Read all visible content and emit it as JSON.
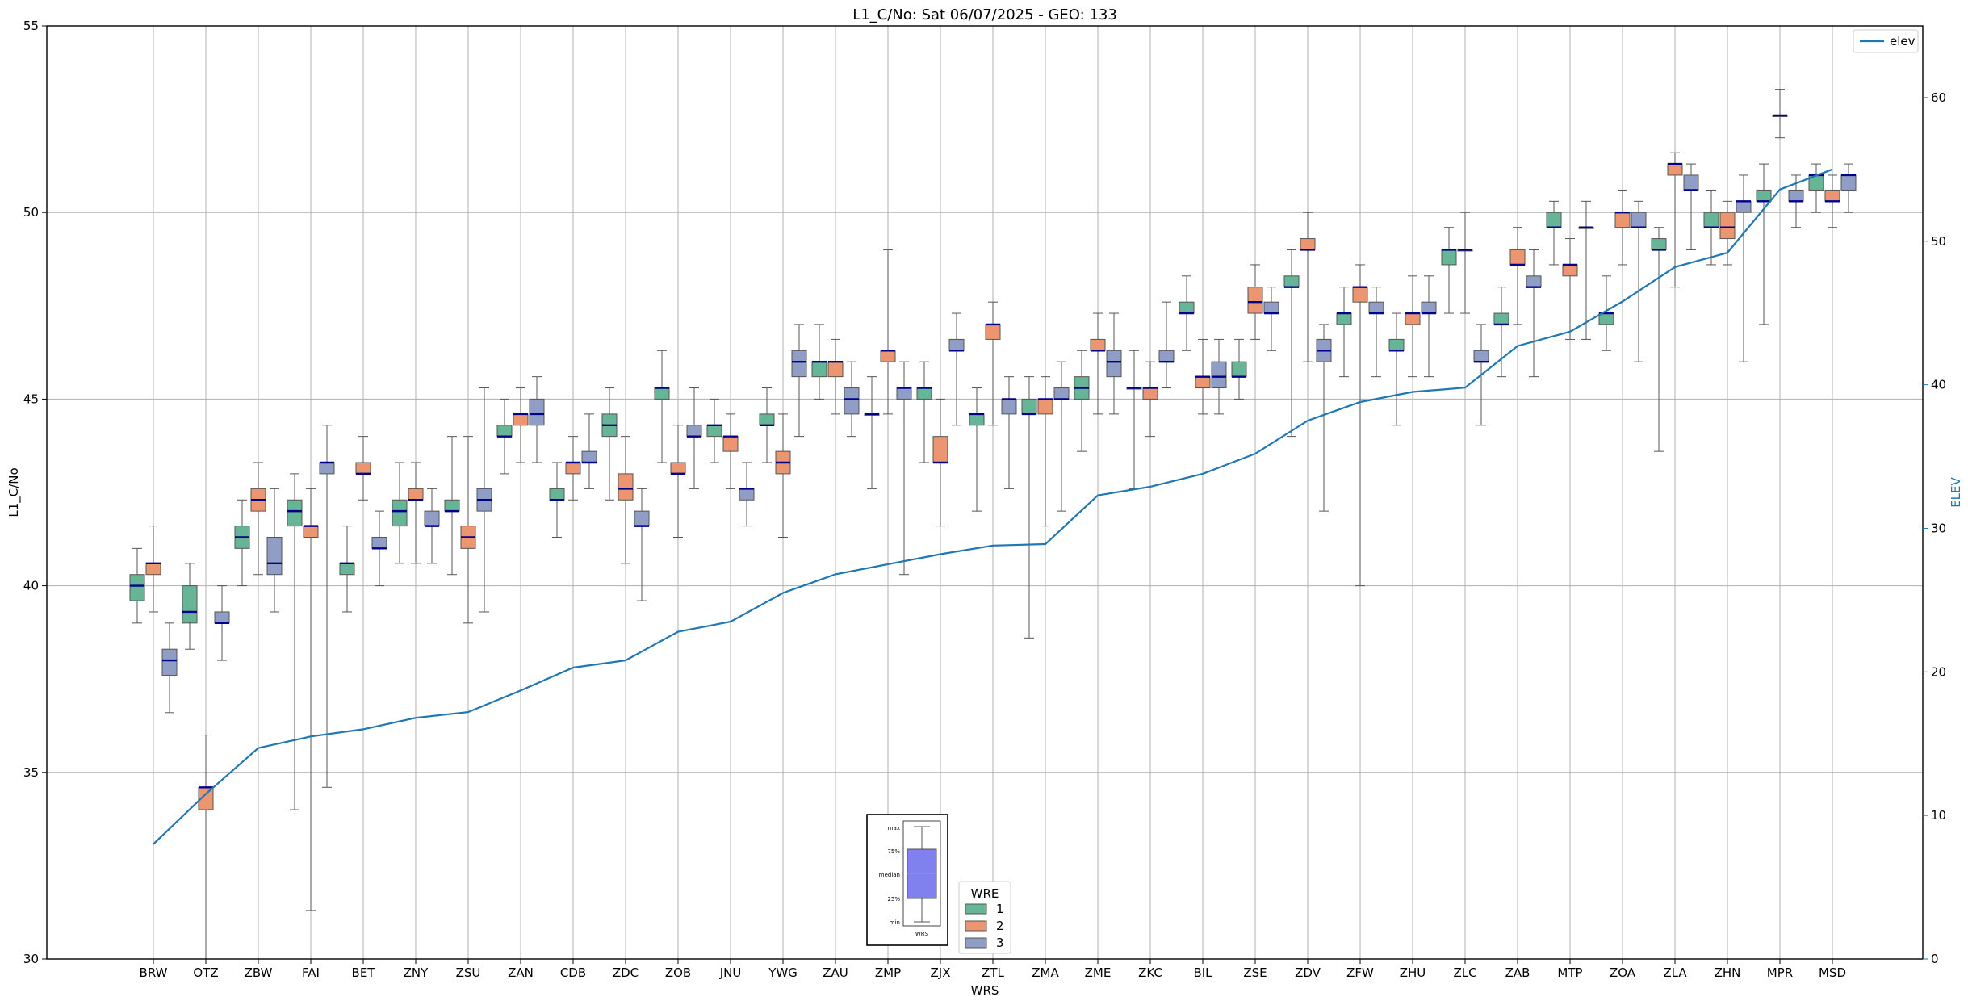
{
  "chart_data": {
    "type": "box",
    "title": "L1_C/No: Sat 06/07/2025 - GEO: 133",
    "xlabel": "WRS",
    "ylabel": "L1_C/No",
    "y2label": "ELEV",
    "ylim": [
      30,
      55
    ],
    "y2lim": [
      0,
      65
    ],
    "yticks": [
      "30",
      "35",
      "40",
      "45",
      "50",
      "55"
    ],
    "y2ticks": [
      "0",
      "10",
      "20",
      "30",
      "40",
      "50",
      "60"
    ],
    "legend_line": "elev",
    "legend_boxes": {
      "title": "WRE",
      "entries": [
        "1",
        "2",
        "3"
      ]
    },
    "key_labels": [
      "max",
      "75%",
      "median",
      "25%",
      "min",
      "WRS"
    ],
    "colors": {
      "1": "#66b596",
      "2": "#ec9671",
      "3": "#909dc4",
      "line": "#1f77b4",
      "median": "#00008b"
    },
    "categories": [
      "BRW",
      "OTZ",
      "ZBW",
      "FAI",
      "BET",
      "ZNY",
      "ZSU",
      "ZAN",
      "CDB",
      "ZDC",
      "ZOB",
      "JNU",
      "YWG",
      "ZAU",
      "ZMP",
      "ZJX",
      "ZTL",
      "ZMA",
      "ZME",
      "ZKC",
      "BIL",
      "ZSE",
      "ZDV",
      "ZFW",
      "ZHU",
      "ZLC",
      "ZAB",
      "MTP",
      "ZOA",
      "ZLA",
      "ZHN",
      "MPR",
      "MSD"
    ],
    "elev": [
      8,
      11.5,
      14.7,
      15.5,
      16,
      16.8,
      17.2,
      18.7,
      20.3,
      20.8,
      22.8,
      23.5,
      25.5,
      26.8,
      27.5,
      28.2,
      28.8,
      28.9,
      32.3,
      32.9,
      33.8,
      35.2,
      37.5,
      38.8,
      39.5,
      39.8,
      42.7,
      43.7,
      45.8,
      48.2,
      49.2,
      53.6,
      55
    ],
    "boxes": [
      {
        "station": "BRW",
        "wre": 1,
        "min": 39.0,
        "q1": 39.6,
        "median": 40.0,
        "q3": 40.3,
        "max": 41.0
      },
      {
        "station": "BRW",
        "wre": 2,
        "min": 39.3,
        "q1": 40.3,
        "median": 40.6,
        "q3": 40.6,
        "max": 41.6
      },
      {
        "station": "BRW",
        "wre": 3,
        "min": 36.6,
        "q1": 37.6,
        "median": 38.0,
        "q3": 38.3,
        "max": 39.0
      },
      {
        "station": "OTZ",
        "wre": 1,
        "min": 38.3,
        "q1": 39.0,
        "median": 39.3,
        "q3": 40.0,
        "max": 40.6
      },
      {
        "station": "OTZ",
        "wre": 2,
        "min": 30.0,
        "q1": 34.0,
        "median": 34.6,
        "q3": 34.6,
        "max": 36.0
      },
      {
        "station": "OTZ",
        "wre": 3,
        "min": 38.0,
        "q1": 39.0,
        "median": 39.0,
        "q3": 39.3,
        "max": 40.0
      },
      {
        "station": "ZBW",
        "wre": 1,
        "min": 40.0,
        "q1": 41.0,
        "median": 41.3,
        "q3": 41.6,
        "max": 42.3
      },
      {
        "station": "ZBW",
        "wre": 2,
        "min": 40.3,
        "q1": 42.0,
        "median": 42.3,
        "q3": 42.6,
        "max": 43.3
      },
      {
        "station": "ZBW",
        "wre": 3,
        "min": 39.3,
        "q1": 40.3,
        "median": 40.6,
        "q3": 41.3,
        "max": 42.6
      },
      {
        "station": "FAI",
        "wre": 1,
        "min": 34.0,
        "q1": 41.6,
        "median": 42.0,
        "q3": 42.3,
        "max": 43.0
      },
      {
        "station": "FAI",
        "wre": 2,
        "min": 31.3,
        "q1": 41.3,
        "median": 41.6,
        "q3": 41.6,
        "max": 42.6
      },
      {
        "station": "FAI",
        "wre": 3,
        "min": 34.6,
        "q1": 43.0,
        "median": 43.3,
        "q3": 43.3,
        "max": 44.3
      },
      {
        "station": "BET",
        "wre": 1,
        "min": 39.3,
        "q1": 40.3,
        "median": 40.6,
        "q3": 40.6,
        "max": 41.6
      },
      {
        "station": "BET",
        "wre": 2,
        "min": 42.3,
        "q1": 43.0,
        "median": 43.0,
        "q3": 43.3,
        "max": 44.0
      },
      {
        "station": "BET",
        "wre": 3,
        "min": 40.0,
        "q1": 41.0,
        "median": 41.0,
        "q3": 41.3,
        "max": 42.0
      },
      {
        "station": "ZNY",
        "wre": 1,
        "min": 40.6,
        "q1": 41.6,
        "median": 42.0,
        "q3": 42.3,
        "max": 43.3
      },
      {
        "station": "ZNY",
        "wre": 2,
        "min": 40.6,
        "q1": 42.3,
        "median": 42.3,
        "q3": 42.6,
        "max": 43.3
      },
      {
        "station": "ZNY",
        "wre": 3,
        "min": 40.6,
        "q1": 41.6,
        "median": 41.6,
        "q3": 42.0,
        "max": 42.6
      },
      {
        "station": "ZSU",
        "wre": 1,
        "min": 40.3,
        "q1": 42.0,
        "median": 42.0,
        "q3": 42.3,
        "max": 44.0
      },
      {
        "station": "ZSU",
        "wre": 2,
        "min": 39.0,
        "q1": 41.0,
        "median": 41.3,
        "q3": 41.6,
        "max": 44.0
      },
      {
        "station": "ZSU",
        "wre": 3,
        "min": 39.3,
        "q1": 42.0,
        "median": 42.3,
        "q3": 42.6,
        "max": 45.3
      },
      {
        "station": "ZAN",
        "wre": 1,
        "min": 43.0,
        "q1": 44.0,
        "median": 44.0,
        "q3": 44.3,
        "max": 45.0
      },
      {
        "station": "ZAN",
        "wre": 2,
        "min": 43.3,
        "q1": 44.3,
        "median": 44.6,
        "q3": 44.6,
        "max": 45.3
      },
      {
        "station": "ZAN",
        "wre": 3,
        "min": 43.3,
        "q1": 44.3,
        "median": 44.6,
        "q3": 45.0,
        "max": 45.6
      },
      {
        "station": "CDB",
        "wre": 1,
        "min": 41.3,
        "q1": 42.3,
        "median": 42.3,
        "q3": 42.6,
        "max": 43.3
      },
      {
        "station": "CDB",
        "wre": 2,
        "min": 42.3,
        "q1": 43.0,
        "median": 43.3,
        "q3": 43.3,
        "max": 44.0
      },
      {
        "station": "CDB",
        "wre": 3,
        "min": 42.6,
        "q1": 43.3,
        "median": 43.3,
        "q3": 43.6,
        "max": 44.6
      },
      {
        "station": "ZDC",
        "wre": 1,
        "min": 42.3,
        "q1": 44.0,
        "median": 44.3,
        "q3": 44.6,
        "max": 45.3
      },
      {
        "station": "ZDC",
        "wre": 2,
        "min": 40.6,
        "q1": 42.3,
        "median": 42.6,
        "q3": 43.0,
        "max": 44.0
      },
      {
        "station": "ZDC",
        "wre": 3,
        "min": 39.6,
        "q1": 41.6,
        "median": 41.6,
        "q3": 42.0,
        "max": 42.6
      },
      {
        "station": "ZOB",
        "wre": 1,
        "min": 43.3,
        "q1": 45.0,
        "median": 45.3,
        "q3": 45.3,
        "max": 46.3
      },
      {
        "station": "ZOB",
        "wre": 2,
        "min": 41.3,
        "q1": 43.0,
        "median": 43.0,
        "q3": 43.3,
        "max": 44.3
      },
      {
        "station": "ZOB",
        "wre": 3,
        "min": 42.6,
        "q1": 44.0,
        "median": 44.0,
        "q3": 44.3,
        "max": 45.3
      },
      {
        "station": "JNU",
        "wre": 1,
        "min": 43.3,
        "q1": 44.0,
        "median": 44.3,
        "q3": 44.3,
        "max": 45.0
      },
      {
        "station": "JNU",
        "wre": 2,
        "min": 42.6,
        "q1": 43.6,
        "median": 44.0,
        "q3": 44.0,
        "max": 44.6
      },
      {
        "station": "JNU",
        "wre": 3,
        "min": 41.6,
        "q1": 42.3,
        "median": 42.6,
        "q3": 42.6,
        "max": 43.3
      },
      {
        "station": "YWG",
        "wre": 1,
        "min": 43.3,
        "q1": 44.3,
        "median": 44.3,
        "q3": 44.6,
        "max": 45.3
      },
      {
        "station": "YWG",
        "wre": 2,
        "min": 41.3,
        "q1": 43.0,
        "median": 43.3,
        "q3": 43.6,
        "max": 44.6
      },
      {
        "station": "YWG",
        "wre": 3,
        "min": 44.0,
        "q1": 45.6,
        "median": 46.0,
        "q3": 46.3,
        "max": 47.0
      },
      {
        "station": "ZAU",
        "wre": 1,
        "min": 45.0,
        "q1": 45.6,
        "median": 46.0,
        "q3": 46.0,
        "max": 47.0
      },
      {
        "station": "ZAU",
        "wre": 2,
        "min": 44.6,
        "q1": 45.6,
        "median": 46.0,
        "q3": 46.0,
        "max": 46.6
      },
      {
        "station": "ZAU",
        "wre": 3,
        "min": 44.0,
        "q1": 44.6,
        "median": 45.0,
        "q3": 45.3,
        "max": 46.0
      },
      {
        "station": "ZMP",
        "wre": 1,
        "min": 42.6,
        "q1": 44.6,
        "median": 44.6,
        "q3": 44.6,
        "max": 45.6
      },
      {
        "station": "ZMP",
        "wre": 2,
        "min": 44.6,
        "q1": 46.0,
        "median": 46.3,
        "q3": 46.3,
        "max": 49.0
      },
      {
        "station": "ZMP",
        "wre": 3,
        "min": 40.3,
        "q1": 45.0,
        "median": 45.3,
        "q3": 45.3,
        "max": 46.0
      },
      {
        "station": "ZJX",
        "wre": 1,
        "min": 43.3,
        "q1": 45.0,
        "median": 45.3,
        "q3": 45.3,
        "max": 46.0
      },
      {
        "station": "ZJX",
        "wre": 2,
        "min": 41.6,
        "q1": 43.3,
        "median": 43.3,
        "q3": 44.0,
        "max": 45.0
      },
      {
        "station": "ZJX",
        "wre": 3,
        "min": 44.3,
        "q1": 46.3,
        "median": 46.3,
        "q3": 46.6,
        "max": 47.3
      },
      {
        "station": "ZTL",
        "wre": 1,
        "min": 42.0,
        "q1": 44.3,
        "median": 44.6,
        "q3": 44.6,
        "max": 45.3
      },
      {
        "station": "ZTL",
        "wre": 2,
        "min": 44.3,
        "q1": 46.6,
        "median": 47.0,
        "q3": 47.0,
        "max": 47.6
      },
      {
        "station": "ZTL",
        "wre": 3,
        "min": 42.6,
        "q1": 44.6,
        "median": 45.0,
        "q3": 45.0,
        "max": 45.6
      },
      {
        "station": "ZMA",
        "wre": 1,
        "min": 38.6,
        "q1": 44.6,
        "median": 44.6,
        "q3": 45.0,
        "max": 45.6
      },
      {
        "station": "ZMA",
        "wre": 2,
        "min": 41.6,
        "q1": 44.6,
        "median": 45.0,
        "q3": 45.0,
        "max": 45.6
      },
      {
        "station": "ZMA",
        "wre": 3,
        "min": 42.0,
        "q1": 45.0,
        "median": 45.0,
        "q3": 45.3,
        "max": 46.0
      },
      {
        "station": "ZME",
        "wre": 1,
        "min": 43.6,
        "q1": 45.0,
        "median": 45.3,
        "q3": 45.6,
        "max": 46.3
      },
      {
        "station": "ZME",
        "wre": 2,
        "min": 44.6,
        "q1": 46.3,
        "median": 46.3,
        "q3": 46.6,
        "max": 47.3
      },
      {
        "station": "ZME",
        "wre": 3,
        "min": 44.6,
        "q1": 45.6,
        "median": 46.0,
        "q3": 46.3,
        "max": 47.3
      },
      {
        "station": "ZKC",
        "wre": 1,
        "min": 42.6,
        "q1": 45.3,
        "median": 45.3,
        "q3": 45.3,
        "max": 46.3
      },
      {
        "station": "ZKC",
        "wre": 2,
        "min": 44.0,
        "q1": 45.0,
        "median": 45.3,
        "q3": 45.3,
        "max": 46.0
      },
      {
        "station": "ZKC",
        "wre": 3,
        "min": 45.3,
        "q1": 46.0,
        "median": 46.0,
        "q3": 46.3,
        "max": 47.6
      },
      {
        "station": "BIL",
        "wre": 1,
        "min": 46.3,
        "q1": 47.3,
        "median": 47.3,
        "q3": 47.6,
        "max": 48.3
      },
      {
        "station": "BIL",
        "wre": 2,
        "min": 44.6,
        "q1": 45.3,
        "median": 45.6,
        "q3": 45.6,
        "max": 46.6
      },
      {
        "station": "BIL",
        "wre": 3,
        "min": 44.6,
        "q1": 45.3,
        "median": 45.6,
        "q3": 46.0,
        "max": 46.6
      },
      {
        "station": "ZSE",
        "wre": 1,
        "min": 45.0,
        "q1": 45.6,
        "median": 45.6,
        "q3": 46.0,
        "max": 46.6
      },
      {
        "station": "ZSE",
        "wre": 2,
        "min": 46.6,
        "q1": 47.3,
        "median": 47.6,
        "q3": 48.0,
        "max": 48.6
      },
      {
        "station": "ZSE",
        "wre": 3,
        "min": 46.3,
        "q1": 47.3,
        "median": 47.3,
        "q3": 47.6,
        "max": 48.0
      },
      {
        "station": "ZDV",
        "wre": 1,
        "min": 44.0,
        "q1": 48.0,
        "median": 48.0,
        "q3": 48.3,
        "max": 49.0
      },
      {
        "station": "ZDV",
        "wre": 2,
        "min": 46.0,
        "q1": 49.0,
        "median": 49.0,
        "q3": 49.3,
        "max": 50.0
      },
      {
        "station": "ZDV",
        "wre": 3,
        "min": 42.0,
        "q1": 46.0,
        "median": 46.3,
        "q3": 46.6,
        "max": 47.0
      },
      {
        "station": "ZFW",
        "wre": 1,
        "min": 45.6,
        "q1": 47.0,
        "median": 47.3,
        "q3": 47.3,
        "max": 48.0
      },
      {
        "station": "ZFW",
        "wre": 2,
        "min": 40.0,
        "q1": 47.6,
        "median": 48.0,
        "q3": 48.0,
        "max": 48.6
      },
      {
        "station": "ZFW",
        "wre": 3,
        "min": 45.6,
        "q1": 47.3,
        "median": 47.3,
        "q3": 47.6,
        "max": 48.0
      },
      {
        "station": "ZHU",
        "wre": 1,
        "min": 44.3,
        "q1": 46.3,
        "median": 46.3,
        "q3": 46.6,
        "max": 47.3
      },
      {
        "station": "ZHU",
        "wre": 2,
        "min": 45.6,
        "q1": 47.0,
        "median": 47.3,
        "q3": 47.3,
        "max": 48.3
      },
      {
        "station": "ZHU",
        "wre": 3,
        "min": 45.6,
        "q1": 47.3,
        "median": 47.3,
        "q3": 47.6,
        "max": 48.3
      },
      {
        "station": "ZLC",
        "wre": 1,
        "min": 47.3,
        "q1": 48.6,
        "median": 49.0,
        "q3": 49.0,
        "max": 49.6
      },
      {
        "station": "ZLC",
        "wre": 2,
        "min": 47.3,
        "q1": 49.0,
        "median": 49.0,
        "q3": 49.0,
        "max": 50.0
      },
      {
        "station": "ZLC",
        "wre": 3,
        "min": 44.3,
        "q1": 46.0,
        "median": 46.0,
        "q3": 46.3,
        "max": 47.0
      },
      {
        "station": "ZAB",
        "wre": 1,
        "min": 45.6,
        "q1": 47.0,
        "median": 47.0,
        "q3": 47.3,
        "max": 48.0
      },
      {
        "station": "ZAB",
        "wre": 2,
        "min": 47.0,
        "q1": 48.6,
        "median": 48.6,
        "q3": 49.0,
        "max": 49.6
      },
      {
        "station": "ZAB",
        "wre": 3,
        "min": 45.6,
        "q1": 48.0,
        "median": 48.0,
        "q3": 48.3,
        "max": 49.0
      },
      {
        "station": "MTP",
        "wre": 1,
        "min": 48.6,
        "q1": 49.6,
        "median": 49.6,
        "q3": 50.0,
        "max": 50.3
      },
      {
        "station": "MTP",
        "wre": 2,
        "min": 46.6,
        "q1": 48.3,
        "median": 48.6,
        "q3": 48.6,
        "max": 49.3
      },
      {
        "station": "MTP",
        "wre": 3,
        "min": 46.6,
        "q1": 49.6,
        "median": 49.6,
        "q3": 49.6,
        "max": 50.3
      },
      {
        "station": "ZOA",
        "wre": 1,
        "min": 46.3,
        "q1": 47.0,
        "median": 47.3,
        "q3": 47.3,
        "max": 48.3
      },
      {
        "station": "ZOA",
        "wre": 2,
        "min": 48.6,
        "q1": 49.6,
        "median": 50.0,
        "q3": 50.0,
        "max": 50.6
      },
      {
        "station": "ZOA",
        "wre": 3,
        "min": 46.0,
        "q1": 49.6,
        "median": 49.6,
        "q3": 50.0,
        "max": 50.3
      },
      {
        "station": "ZLA",
        "wre": 1,
        "min": 43.6,
        "q1": 49.0,
        "median": 49.0,
        "q3": 49.3,
        "max": 49.6
      },
      {
        "station": "ZLA",
        "wre": 2,
        "min": 48.0,
        "q1": 51.0,
        "median": 51.3,
        "q3": 51.3,
        "max": 51.6
      },
      {
        "station": "ZLA",
        "wre": 3,
        "min": 49.0,
        "q1": 50.6,
        "median": 50.6,
        "q3": 51.0,
        "max": 51.3
      },
      {
        "station": "ZHN",
        "wre": 1,
        "min": 48.6,
        "q1": 49.6,
        "median": 49.6,
        "q3": 50.0,
        "max": 50.6
      },
      {
        "station": "ZHN",
        "wre": 2,
        "min": 48.6,
        "q1": 49.3,
        "median": 49.6,
        "q3": 50.0,
        "max": 50.3
      },
      {
        "station": "ZHN",
        "wre": 3,
        "min": 46.0,
        "q1": 50.0,
        "median": 50.3,
        "q3": 50.3,
        "max": 51.0
      },
      {
        "station": "MPR",
        "wre": 1,
        "min": 47.0,
        "q1": 50.3,
        "median": 50.3,
        "q3": 50.6,
        "max": 51.3
      },
      {
        "station": "MPR",
        "wre": 2,
        "min": 52.0,
        "q1": 52.6,
        "median": 52.6,
        "q3": 52.6,
        "max": 53.3
      },
      {
        "station": "MPR",
        "wre": 3,
        "min": 49.6,
        "q1": 50.3,
        "median": 50.3,
        "q3": 50.6,
        "max": 51.0
      },
      {
        "station": "MSD",
        "wre": 1,
        "min": 50.0,
        "q1": 50.6,
        "median": 51.0,
        "q3": 51.0,
        "max": 51.3
      },
      {
        "station": "MSD",
        "wre": 2,
        "min": 49.6,
        "q1": 50.3,
        "median": 50.3,
        "q3": 50.6,
        "max": 51.0
      },
      {
        "station": "MSD",
        "wre": 3,
        "min": 50.0,
        "q1": 50.6,
        "median": 51.0,
        "q3": 51.0,
        "max": 51.3
      }
    ]
  }
}
